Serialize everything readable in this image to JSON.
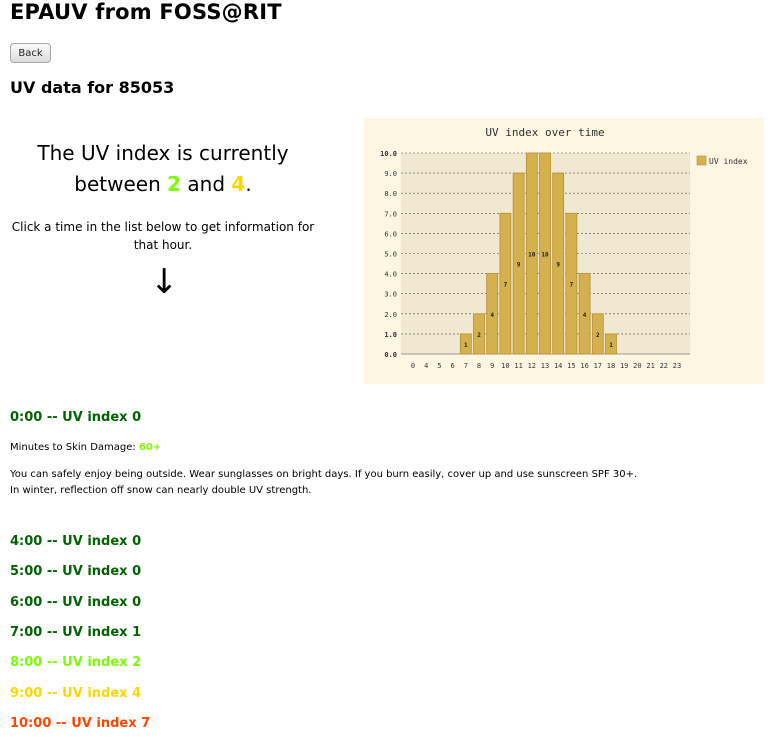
{
  "page": {
    "title": "EPAUV from FOSS@RIT",
    "back_label": "Back",
    "subtitle": "UV data for 85053"
  },
  "current": {
    "line1": "The UV index is currently",
    "between_word": "between",
    "low": "2",
    "and_word": "and",
    "high": "4",
    "period": ".",
    "low_color": "#7cfc00",
    "high_color": "#ffd700"
  },
  "instructions": "Click a time in the list below to get information for that hour.",
  "arrow_glyph": "↓",
  "chart_data": {
    "type": "bar",
    "title": "UV index over time",
    "legend": {
      "label": "UV index",
      "placement": "right"
    },
    "categories": [
      "0",
      "4",
      "5",
      "6",
      "7",
      "8",
      "9",
      "10",
      "11",
      "12",
      "13",
      "14",
      "15",
      "16",
      "17",
      "18",
      "19",
      "20",
      "21",
      "22",
      "23"
    ],
    "values": [
      0,
      0,
      0,
      0,
      1,
      2,
      4,
      7,
      9,
      10,
      10,
      9,
      7,
      4,
      2,
      1,
      0,
      0,
      0,
      0,
      0
    ],
    "data_labels": [
      "",
      "",
      "",
      "",
      "1",
      "2",
      "4",
      "7",
      "9",
      "10",
      "10",
      "9",
      "7",
      "4",
      "2",
      "1",
      "",
      "",
      "",
      "",
      ""
    ],
    "y_ticks": [
      "0.0",
      "1.0",
      "2.0",
      "3.0",
      "4.0",
      "5.0",
      "6.0",
      "7.0",
      "8.0",
      "9.0",
      "10.0"
    ],
    "ylim": [
      0,
      10
    ],
    "grid": true,
    "bar_color": "#d4b04e",
    "plot_bg": "#f0e8d0",
    "panel_bg": "#fdf6e3"
  },
  "hours": [
    {
      "label": "0:00 -- UV index 0",
      "color": "#006400"
    },
    {
      "label": "4:00 -- UV index 0",
      "color": "#006400"
    },
    {
      "label": "5:00 -- UV index 0",
      "color": "#006400"
    },
    {
      "label": "6:00 -- UV index 0",
      "color": "#006400"
    },
    {
      "label": "7:00 -- UV index 1",
      "color": "#006400"
    },
    {
      "label": "8:00 -- UV index 2",
      "color": "#7cfc00"
    },
    {
      "label": "9:00 -- UV index 4",
      "color": "#ffd700"
    },
    {
      "label": "10:00 -- UV index 7",
      "color": "#ff4500"
    }
  ],
  "details": {
    "skin_label": "Minutes to Skin Damage:",
    "skin_value": "60+",
    "skin_value_color": "#7cfc00",
    "advice1": "You can safely enjoy being outside. Wear sunglasses on bright days. If you burn easily, cover up and use sunscreen SPF 30+.",
    "advice2": "In winter, reflection off snow can nearly double UV strength."
  }
}
